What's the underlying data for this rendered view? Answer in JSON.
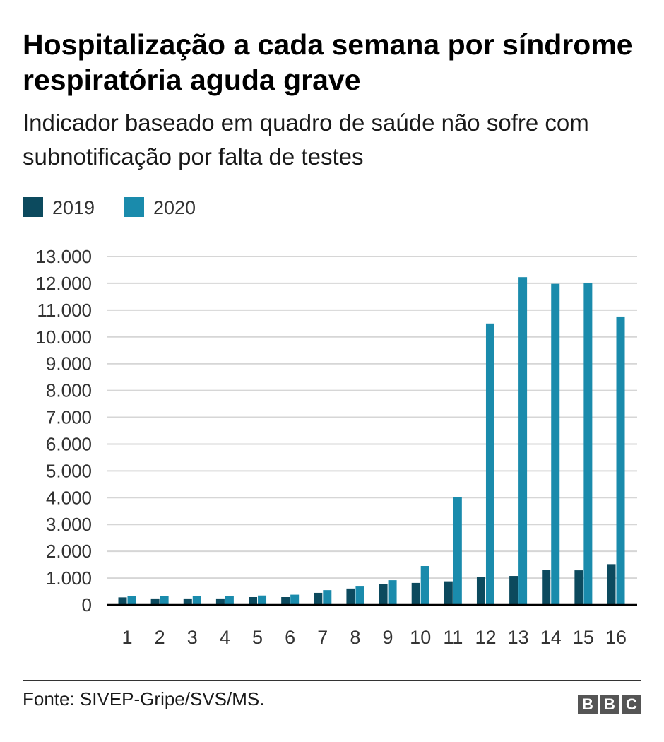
{
  "header": {
    "title": "Hospitalização a cada semana por síndrome respiratória aguda grave",
    "subtitle": "Indicador baseado em quadro de saúde não sofre com subnotificação por falta de testes"
  },
  "footer": {
    "source": "Fonte: SIVEP-Gripe/SVS/MS.",
    "logo_letters": [
      "B",
      "B",
      "C"
    ]
  },
  "chart_data": {
    "type": "bar",
    "title": "Hospitalização a cada semana por síndrome respiratória aguda grave",
    "subtitle": "Indicador baseado em quadro de saúde não sofre com subnotificação por falta de testes",
    "xlabel": "",
    "ylabel": "",
    "categories": [
      "1",
      "2",
      "3",
      "4",
      "5",
      "6",
      "7",
      "8",
      "9",
      "10",
      "11",
      "12",
      "13",
      "14",
      "15",
      "16"
    ],
    "series": [
      {
        "name": "2019",
        "color": "#0c4a5e",
        "values": [
          280,
          240,
          240,
          240,
          290,
          290,
          450,
          610,
          770,
          820,
          880,
          1030,
          1080,
          1310,
          1290,
          1520
        ]
      },
      {
        "name": "2020",
        "color": "#1a8bac",
        "values": [
          330,
          330,
          330,
          330,
          350,
          380,
          550,
          710,
          920,
          1450,
          4020,
          10500,
          12230,
          11980,
          12020,
          10760
        ]
      }
    ],
    "ylim": [
      0,
      13000
    ],
    "yticks": [
      0,
      1000,
      2000,
      3000,
      4000,
      5000,
      6000,
      7000,
      8000,
      9000,
      10000,
      11000,
      12000,
      13000
    ],
    "ytick_labels": [
      "0",
      "1.000",
      "2.000",
      "3.000",
      "4.000",
      "5.000",
      "6.000",
      "7.000",
      "8.000",
      "9.000",
      "10.000",
      "11.000",
      "12.000",
      "13.000"
    ],
    "grid": true,
    "legend_position": "top-left",
    "baseline_color": "#000000",
    "grid_color": "#d6d6d6",
    "tick_label_color": "#333333"
  }
}
